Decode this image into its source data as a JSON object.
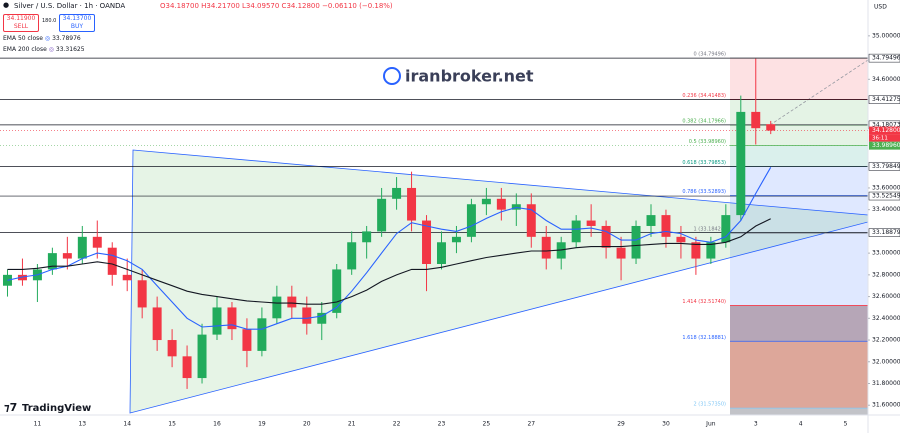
{
  "header": {
    "symbol": "Silver / U.S. Dollar · 1h · OANDA",
    "ohlc": "O34.18700 H34.21700 L34.09570 C34.12800 −0.06110 (−0.18%)",
    "sell_price": "34.11900",
    "sell": "SELL",
    "spread": "180.0",
    "buy_price": "34.13700",
    "buy": "BUY",
    "watermark": "iranbroker.net",
    "brand": "TradingView",
    "currency": "USD"
  },
  "chart_data": {
    "type": "candlestick",
    "categories": [
      null,
      null,
      "11",
      null,
      null,
      "13",
      null,
      null,
      "14",
      null,
      null,
      "15",
      null,
      null,
      "16",
      null,
      null,
      "19",
      null,
      null,
      "20",
      null,
      null,
      "21",
      null,
      null,
      "22",
      null,
      null,
      "23",
      null,
      null,
      "25",
      null,
      null,
      "27",
      null,
      null,
      null,
      null,
      null,
      "29",
      null,
      null,
      "30",
      null,
      null,
      "Jun",
      null,
      null,
      "3",
      null,
      null,
      "4",
      null,
      null,
      "5",
      null
    ],
    "open": [
      32.7,
      32.8,
      32.75,
      32.85,
      33.0,
      32.95,
      33.15,
      33.05,
      32.8,
      32.75,
      32.5,
      32.2,
      32.05,
      31.85,
      32.25,
      32.5,
      32.3,
      32.1,
      32.4,
      32.6,
      32.5,
      32.35,
      32.45,
      32.85,
      33.1,
      33.2,
      33.5,
      33.6,
      33.3,
      32.9,
      33.1,
      33.15,
      33.45,
      33.5,
      33.4,
      33.45,
      33.15,
      32.95,
      33.1,
      33.3,
      33.25,
      33.05,
      32.95,
      33.25,
      33.35,
      33.15,
      33.1,
      32.95,
      33.1,
      33.35,
      34.3,
      34.187,
      null,
      null,
      null,
      null,
      null,
      null
    ],
    "high": [
      32.85,
      32.95,
      32.9,
      33.05,
      33.15,
      33.25,
      33.3,
      33.1,
      32.95,
      32.85,
      32.6,
      32.3,
      32.15,
      32.35,
      32.6,
      32.55,
      32.4,
      32.5,
      32.7,
      32.7,
      32.6,
      32.55,
      32.9,
      33.2,
      33.25,
      33.6,
      33.7,
      33.75,
      33.35,
      33.2,
      33.25,
      33.5,
      33.6,
      33.6,
      33.55,
      33.55,
      33.25,
      33.15,
      33.35,
      33.45,
      33.3,
      33.15,
      33.3,
      33.45,
      33.4,
      33.25,
      33.15,
      33.15,
      33.45,
      34.45,
      34.79,
      34.217,
      null,
      null,
      null,
      null,
      null,
      null
    ],
    "low": [
      32.6,
      32.7,
      32.55,
      32.8,
      32.85,
      32.9,
      32.95,
      32.7,
      32.65,
      32.4,
      32.1,
      31.95,
      31.75,
      31.8,
      32.2,
      32.2,
      31.95,
      32.05,
      32.35,
      32.4,
      32.25,
      32.2,
      32.4,
      32.8,
      32.95,
      33.15,
      33.4,
      33.2,
      32.65,
      32.85,
      33.0,
      33.1,
      33.35,
      33.3,
      33.25,
      33.05,
      32.85,
      32.85,
      33.05,
      33.15,
      32.95,
      32.75,
      32.9,
      33.15,
      33.05,
      32.95,
      32.8,
      32.9,
      33.05,
      33.3,
      34.0,
      34.0957,
      null,
      null,
      null,
      null,
      null,
      null
    ],
    "close": [
      32.8,
      32.75,
      32.85,
      33.0,
      32.95,
      33.15,
      33.05,
      32.8,
      32.75,
      32.5,
      32.2,
      32.05,
      31.85,
      32.25,
      32.5,
      32.3,
      32.1,
      32.4,
      32.6,
      32.5,
      32.35,
      32.45,
      32.85,
      33.1,
      33.2,
      33.5,
      33.6,
      33.3,
      32.9,
      33.1,
      33.15,
      33.45,
      33.5,
      33.4,
      33.45,
      33.15,
      32.95,
      33.1,
      33.3,
      33.25,
      33.05,
      32.95,
      33.25,
      33.35,
      33.15,
      33.1,
      32.95,
      33.1,
      33.35,
      34.3,
      34.15,
      34.128,
      null,
      null,
      null,
      null,
      null,
      null
    ],
    "up_color": "#22ab5c",
    "down_color": "#f23645",
    "overlays": [
      {
        "name": "EMA 50 close",
        "color": "#2962ff",
        "values": [
          32.75,
          32.78,
          32.8,
          32.85,
          32.88,
          32.95,
          33.0,
          32.98,
          32.93,
          32.85,
          32.7,
          32.55,
          32.4,
          32.32,
          32.33,
          32.34,
          32.3,
          32.3,
          32.35,
          32.4,
          32.4,
          32.42,
          32.5,
          32.65,
          32.82,
          33.0,
          33.18,
          33.28,
          33.25,
          33.22,
          33.2,
          33.25,
          33.32,
          33.38,
          33.42,
          33.4,
          33.3,
          33.22,
          33.22,
          33.23,
          33.2,
          33.12,
          33.12,
          33.18,
          33.2,
          33.18,
          33.12,
          33.1,
          33.15,
          33.3,
          33.55,
          33.78976,
          null,
          null,
          null,
          null,
          null,
          null
        ]
      },
      {
        "name": "EMA 200 close",
        "color": "#131722",
        "values": [
          32.85,
          32.85,
          32.86,
          32.88,
          32.88,
          32.9,
          32.92,
          32.9,
          32.85,
          32.8,
          32.75,
          32.7,
          32.65,
          32.62,
          32.6,
          32.58,
          32.56,
          32.55,
          32.54,
          32.54,
          32.53,
          32.53,
          32.55,
          32.6,
          32.66,
          32.74,
          32.8,
          32.85,
          32.85,
          32.87,
          32.9,
          32.93,
          32.96,
          32.98,
          33.0,
          33.02,
          33.02,
          33.03,
          33.05,
          33.06,
          33.06,
          33.06,
          33.07,
          33.08,
          33.09,
          33.09,
          33.08,
          33.08,
          33.1,
          33.15,
          33.25,
          33.31625,
          null,
          null,
          null,
          null,
          null,
          null
        ]
      }
    ],
    "ylim": [
      31.51,
      35.33
    ],
    "yticks": [
      {
        "value": 31.6,
        "label": "31.60000"
      },
      {
        "value": 31.8,
        "label": "31.80000"
      },
      {
        "value": 32.0,
        "label": "32.00000"
      },
      {
        "value": 32.2,
        "label": "32.20000"
      },
      {
        "value": 32.4,
        "label": "32.40000"
      },
      {
        "value": 32.6,
        "label": "32.60000"
      },
      {
        "value": 32.8,
        "label": "32.80000"
      },
      {
        "value": 33.0,
        "label": "33.00000"
      },
      {
        "value": 33.4,
        "label": "33.40000"
      },
      {
        "value": 33.6,
        "label": "33.60000"
      },
      {
        "value": 34.6,
        "label": "34.60000"
      },
      {
        "value": 35.0,
        "label": "35.00000"
      }
    ],
    "grid": false,
    "hlines": [
      34.79496,
      34.41275,
      34.18073,
      33.79849,
      33.52549,
      33.18879
    ],
    "tags": [
      {
        "value": 33.9896,
        "label": "33.98960",
        "color": "#4caf50"
      },
      {
        "value": 34.128,
        "label": "34.12800",
        "color": "#f23645"
      }
    ],
    "countdown": "36:11",
    "fib": [
      {
        "value": 34.79496,
        "label": "0 (34.79496)",
        "color": "#f23645",
        "line": "#787b86"
      },
      {
        "value": 34.41483,
        "label": "0.236 (34.41483)",
        "color": "#4caf50",
        "line": "#f23645"
      },
      {
        "value": 34.17966,
        "label": "0.382 (34.17966)",
        "color": "#4caf50",
        "line": "#4caf50"
      },
      {
        "value": 33.9896,
        "label": "0.5 (33.98960)",
        "color": "#089981",
        "line": "#4caf50"
      },
      {
        "value": 33.79853,
        "label": "0.618 (33.79853)",
        "color": "#2962ff",
        "line": "#089981"
      },
      {
        "value": 33.52893,
        "label": "0.786 (33.52893)",
        "color": "#2962ff",
        "line": "#2962ff"
      },
      {
        "value": 33.18424,
        "label": "1 (33.18424)",
        "color": "#2962ff",
        "line": "#787b86"
      },
      {
        "value": 32.5174,
        "label": "1.414 (32.51740)",
        "color": "#5d3a5f",
        "line": "#f23645"
      },
      {
        "value": 32.18881,
        "label": "1.618 (32.18881)",
        "color": "#b33b1f",
        "line": "#2962ff"
      },
      {
        "value": 31.5735,
        "label": "2 (31.57350)",
        "color": "#787b86",
        "line": "#81c7f5"
      }
    ]
  }
}
